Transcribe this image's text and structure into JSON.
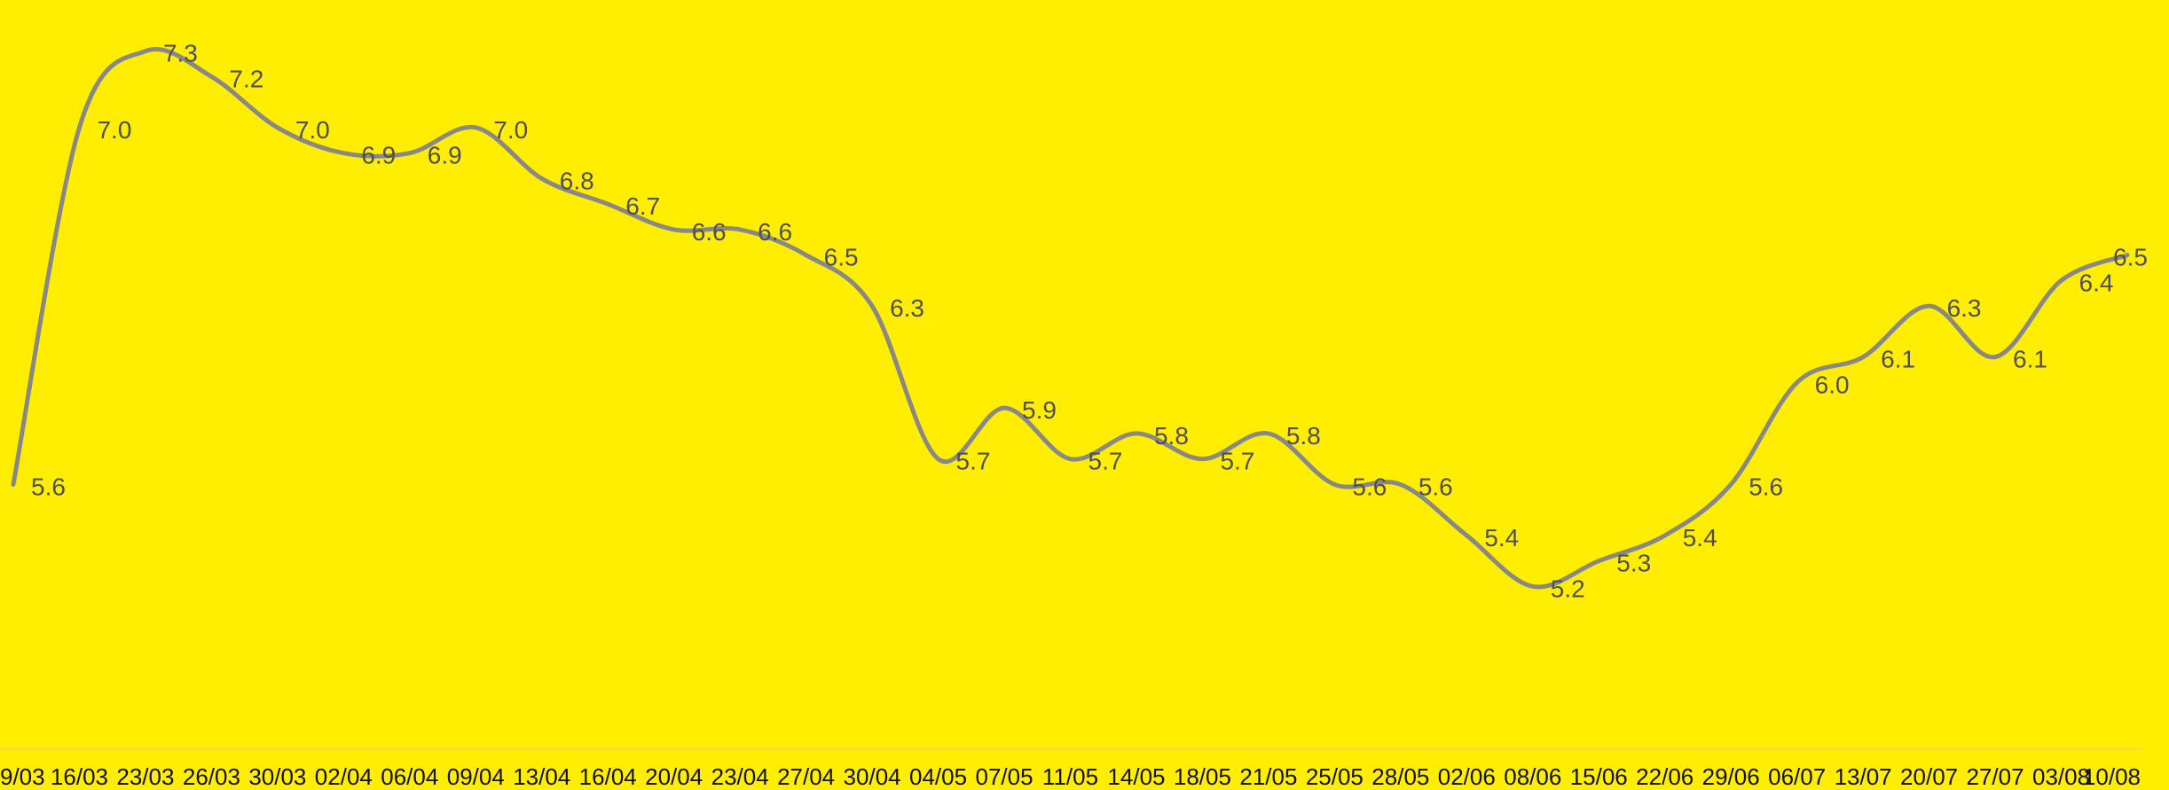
{
  "chart_data": {
    "type": "line",
    "title": "",
    "xlabel": "",
    "ylabel": "",
    "categories": [
      "9/03",
      "16/03",
      "23/03",
      "26/03",
      "30/03",
      "02/04",
      "06/04",
      "09/04",
      "13/04",
      "16/04",
      "20/04",
      "23/04",
      "27/04",
      "30/04",
      "04/05",
      "07/05",
      "11/05",
      "14/05",
      "18/05",
      "21/05",
      "25/05",
      "28/05",
      "02/06",
      "08/06",
      "15/06",
      "22/06",
      "29/06",
      "06/07",
      "13/07",
      "20/07",
      "27/07",
      "03/08",
      "10/08"
    ],
    "values": [
      5.6,
      7.0,
      7.3,
      7.2,
      7.0,
      6.9,
      6.9,
      7.0,
      6.8,
      6.7,
      6.6,
      6.6,
      6.5,
      6.3,
      5.7,
      5.9,
      5.7,
      5.8,
      5.7,
      5.8,
      5.6,
      5.6,
      5.4,
      5.2,
      5.3,
      5.4,
      5.6,
      6.0,
      6.1,
      6.3,
      6.1,
      6.4,
      6.5
    ],
    "data_labels": [
      "5.6",
      "7.0",
      "7.3",
      "7.2",
      "7.0",
      "6.9",
      "6.9",
      "7.0",
      "6.8",
      "6.7",
      "6.6",
      "6.6",
      "6.5",
      "6.3",
      "5.7",
      "5.9",
      "5.7",
      "5.8",
      "5.7",
      "5.8",
      "5.6",
      "5.6",
      "5.4",
      "5.2",
      "5.3",
      "5.4",
      "5.6",
      "6.0",
      "6.1",
      "6.3",
      "6.1",
      "6.4",
      "6.5"
    ],
    "ylim": [
      4.0,
      7.4
    ],
    "grid": false,
    "legend": "none",
    "smooth": true,
    "colors": {
      "background": "#FFEE00",
      "line": "#888888",
      "label": "#4f4f4f",
      "tick": "#111111",
      "baseline": "#e6dc55"
    }
  }
}
